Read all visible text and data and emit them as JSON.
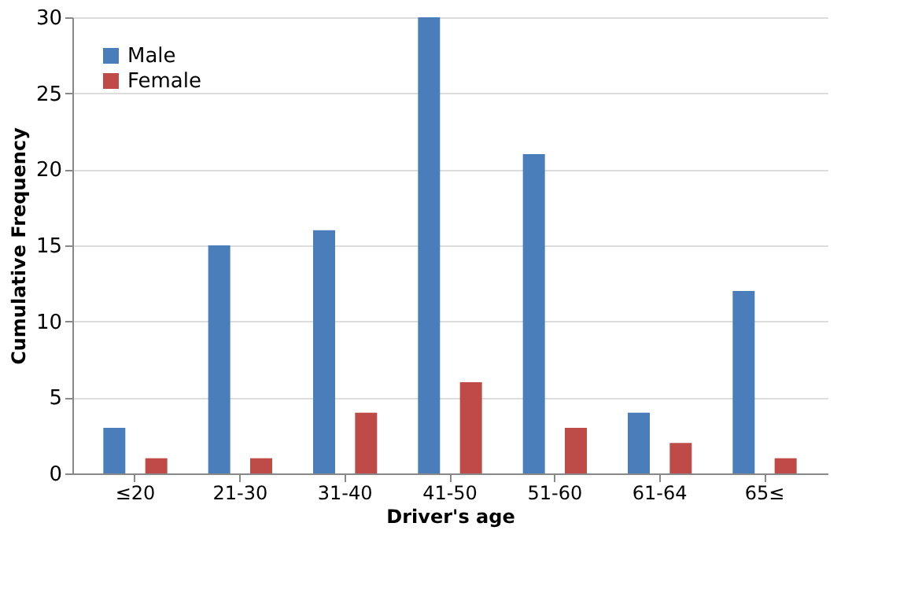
{
  "chart_data": {
    "type": "bar",
    "xlabel": "Driver's age",
    "ylabel": "Cumulative Frequency",
    "categories": [
      "≤20",
      "21-30",
      "31-40",
      "41-50",
      "51-60",
      "61-64",
      "65≤"
    ],
    "series": [
      {
        "name": "Male",
        "color": "#4a7ebb",
        "values": [
          3,
          15,
          16,
          30,
          21,
          4,
          12
        ]
      },
      {
        "name": "Female",
        "color": "#be4b48",
        "values": [
          1,
          1,
          4,
          6,
          3,
          2,
          1
        ]
      }
    ],
    "ylim": [
      0,
      30
    ],
    "yticks": [
      0,
      5,
      10,
      15,
      20,
      25,
      30
    ],
    "grid": "y",
    "legend": "top left"
  }
}
